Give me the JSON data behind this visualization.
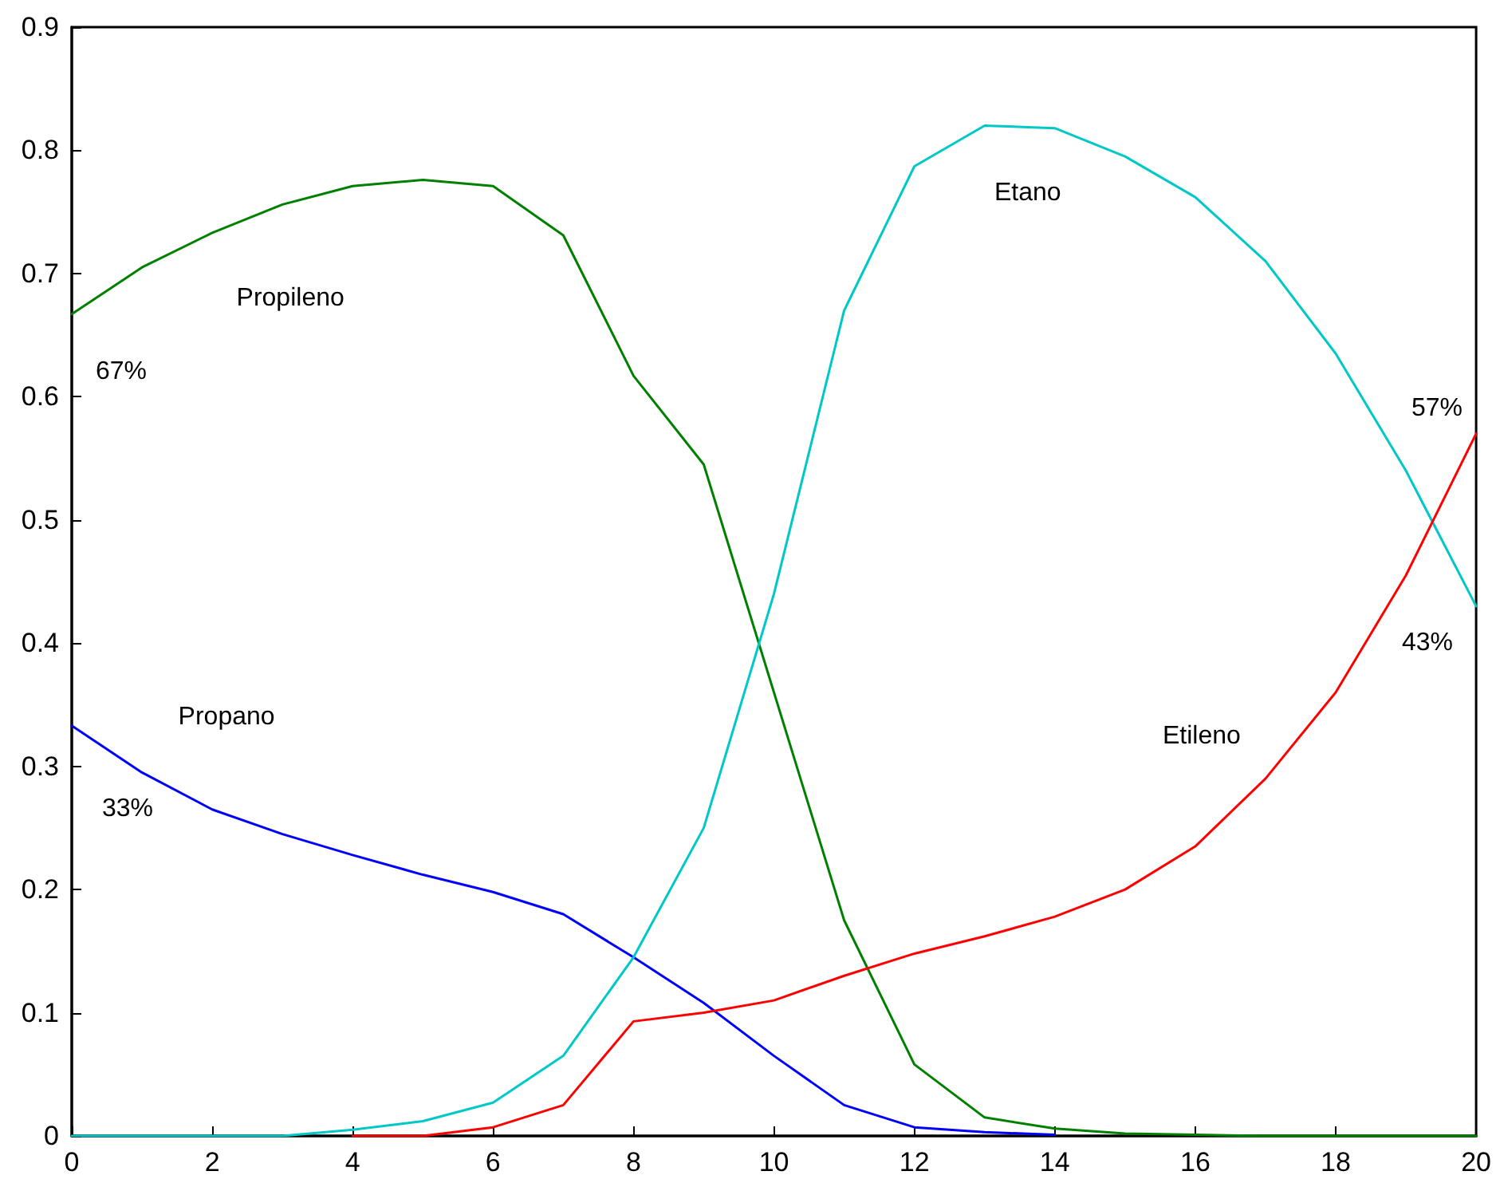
{
  "chart_data": {
    "type": "line",
    "x": [
      0,
      1,
      2,
      3,
      4,
      5,
      6,
      7,
      8,
      9,
      10,
      11,
      12,
      13,
      14,
      15,
      16,
      17,
      18,
      19,
      20
    ],
    "series": [
      {
        "name": "Propileno",
        "color": "#008000",
        "values": [
          0.667,
          0.705,
          0.733,
          0.756,
          0.771,
          0.776,
          0.771,
          0.731,
          0.617,
          0.545,
          0.36,
          0.175,
          0.058,
          0.015,
          0.006,
          0.002,
          0.001,
          0,
          0,
          0,
          0
        ]
      },
      {
        "name": "Propano",
        "color": "#0000ff",
        "values": [
          0.333,
          0.295,
          0.265,
          0.245,
          0.228,
          0.212,
          0.198,
          0.18,
          0.145,
          0.108,
          0.065,
          0.025,
          0.007,
          0.003,
          0.001,
          null,
          null,
          null,
          null,
          null,
          null
        ]
      },
      {
        "name": "Etano",
        "color": "#00c8c8",
        "values": [
          0,
          0,
          0,
          0,
          0.005,
          0.012,
          0.027,
          0.065,
          0.145,
          0.25,
          0.44,
          0.67,
          0.787,
          0.82,
          0.818,
          0.795,
          0.762,
          0.71,
          0.635,
          0.54,
          0.43
        ]
      },
      {
        "name": "Etileno",
        "color": "#ff0000",
        "values": [
          null,
          null,
          null,
          null,
          0,
          0,
          0.007,
          0.025,
          0.093,
          0.1,
          0.11,
          0.13,
          0.148,
          0.162,
          0.178,
          0.2,
          0.235,
          0.29,
          0.36,
          0.455,
          0.57
        ]
      }
    ],
    "annotations": [
      "67%",
      "33%",
      "57%",
      "43%"
    ],
    "xlim": [
      0,
      20
    ],
    "xticks": [
      0,
      2,
      4,
      6,
      8,
      10,
      12,
      14,
      16,
      18,
      20
    ],
    "ylim": [
      0,
      0.9
    ],
    "yticks": [
      0,
      0.1,
      0.2,
      0.3,
      0.4,
      0.5,
      0.6,
      0.7,
      0.8,
      0.9
    ],
    "grid": false,
    "marker": "none",
    "line_style": "solid"
  }
}
